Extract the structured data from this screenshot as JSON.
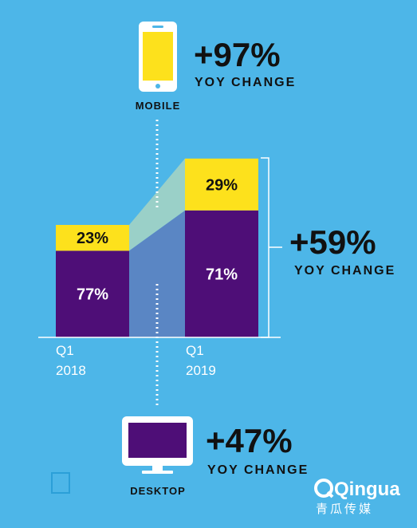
{
  "chart_data": {
    "type": "bar",
    "stacked": true,
    "categories": [
      {
        "line1": "Q1",
        "line2": "2018"
      },
      {
        "line1": "Q1",
        "line2": "2019"
      }
    ],
    "series": [
      {
        "name": "DESKTOP",
        "values": [
          77,
          71
        ],
        "labels": [
          "77%",
          "71%"
        ],
        "color": "#4e0e77"
      },
      {
        "name": "MOBILE",
        "values": [
          23,
          29
        ],
        "labels": [
          "23%",
          "29%"
        ],
        "color": "#fde11c"
      }
    ],
    "relative_total": [
      1.0,
      1.59
    ],
    "annotations": {
      "mobile": {
        "label": "MOBILE",
        "value": "+97%",
        "caption": "YOY CHANGE"
      },
      "total": {
        "value": "+59%",
        "caption": "YOY CHANGE"
      },
      "desktop": {
        "label": "DESKTOP",
        "value": "+47%",
        "caption": "YOY CHANGE"
      }
    },
    "colors": {
      "background": "#4db6e8",
      "desktop": "#4e0e77",
      "mobile": "#fde11c",
      "desktop_band": "#5a86c4",
      "mobile_band": "#9ad0c8",
      "text": "#111111"
    }
  },
  "brand": {
    "name": "Qingua",
    "subtitle": "青瓜传媒"
  }
}
